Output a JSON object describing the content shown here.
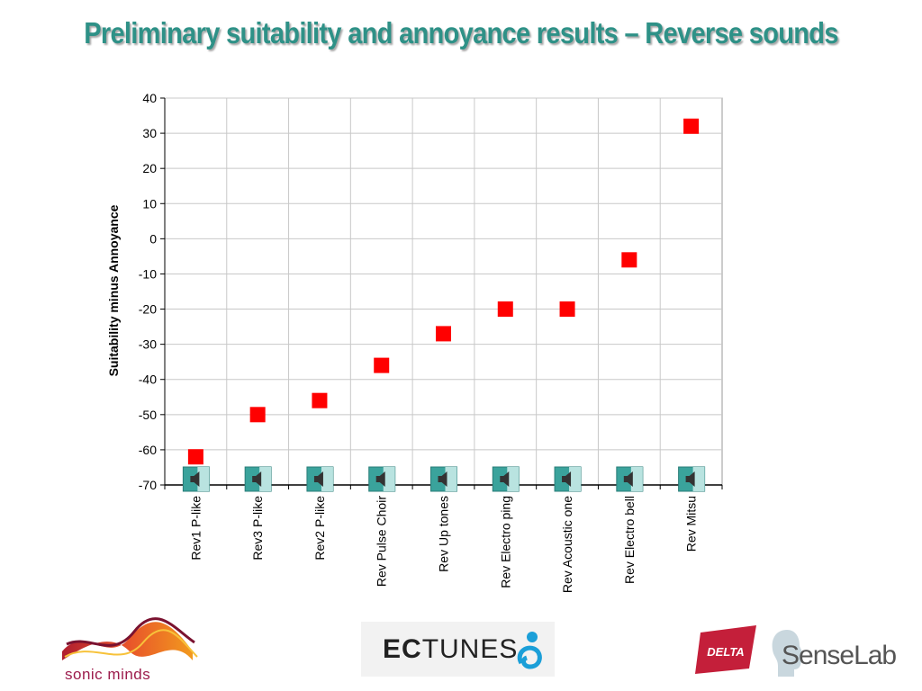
{
  "slide": {
    "title": "Preliminary suitability and annoyance results – Reverse sounds",
    "title_color": "#2e9187"
  },
  "chart_data": {
    "type": "scatter",
    "title": "",
    "xlabel": "",
    "ylabel": "Suitability minus Annoyance",
    "ylim": [
      -70,
      40
    ],
    "ytick_step": 10,
    "grid": true,
    "legend": "none",
    "marker": "square",
    "marker_color": "#ff0000",
    "categories": [
      "Rev1 P-like",
      "Rev3 P-like",
      "Rev2 P-like",
      "Rev Pulse Choir",
      "Rev Up tones",
      "Rev Electro ping",
      "Rev Acoustic one",
      "Rev Electro bell",
      "Rev Mitsu"
    ],
    "values": [
      -62,
      -50,
      -46,
      -36,
      -27,
      -20,
      -20,
      -6,
      32
    ]
  },
  "speaker_icon": "speaker-icon",
  "logos": {
    "sonic_minds": {
      "text": "sonic minds",
      "color": "#9c1c4c"
    },
    "ectunes": {
      "prefix": "EC",
      "rest": "TUNES"
    },
    "delta": {
      "text": "DELTA",
      "color": "#c41f3a"
    },
    "senselab": {
      "text": "SenseLab"
    }
  }
}
